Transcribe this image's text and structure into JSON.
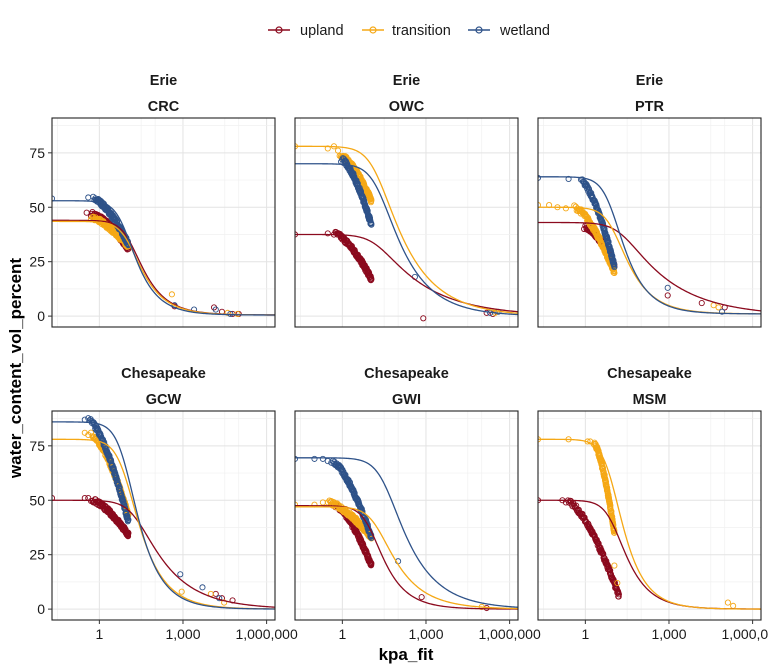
{
  "chart_data": {
    "type": "scatter",
    "xlabel": "kpa_fit",
    "ylabel": "water_content_vol_percent",
    "x_scale": "log10",
    "xlim": [
      0.02,
      2000000
    ],
    "ylim": [
      -5,
      91
    ],
    "x_ticks": [
      1,
      1000,
      1000000
    ],
    "x_tick_labels": [
      "1",
      "1,000",
      "1,000,000"
    ],
    "y_ticks": [
      0,
      25,
      50,
      75
    ],
    "y_tick_labels": [
      "0",
      "25",
      "50",
      "75"
    ],
    "grid": true,
    "legend": {
      "position": "top",
      "entries": [
        "upland",
        "transition",
        "wetland"
      ]
    },
    "series_colors": {
      "upland": "#8B0A1E",
      "transition": "#F5A816",
      "wetland": "#2E5289"
    },
    "panels": [
      {
        "region": "Erie",
        "site": "CRC",
        "curves": {
          "upland": {
            "theta_r": 0.5,
            "theta_s": 44,
            "alpha": 0.08,
            "n": 1.6
          },
          "transition": {
            "theta_r": 0.5,
            "theta_s": 43.5,
            "alpha": 0.09,
            "n": 1.6
          },
          "wetland": {
            "theta_r": 0.5,
            "theta_s": 53,
            "alpha": 0.13,
            "n": 1.65
          }
        },
        "points": {
          "upland": {
            "dense": [
              [
                0.5,
                47
              ],
              [
                11,
                31
              ]
            ],
            "sparse": [
              [
                0.35,
                47.5
              ],
              [
                0.55,
                47
              ],
              [
                500,
                4.5
              ],
              [
                13000,
                4
              ],
              [
                25000,
                2
              ],
              [
                60000,
                1
              ],
              [
                100000,
                1
              ]
            ]
          },
          "transition": {
            "dense": [
              [
                0.5,
                45
              ],
              [
                11,
                32
              ]
            ],
            "sparse": [
              [
                400,
                10
              ],
              [
                40000,
                1.5
              ],
              [
                90000,
                1
              ]
            ]
          },
          "wetland": {
            "dense": [
              [
                0.6,
                54
              ],
              [
                11,
                33
              ]
            ],
            "sparse": [
              [
                0.02,
                54
              ],
              [
                0.4,
                54.5
              ],
              [
                500,
                5
              ],
              [
                2500,
                3
              ],
              [
                15000,
                3
              ],
              [
                50000,
                1
              ]
            ]
          }
        }
      },
      {
        "region": "Erie",
        "site": "OWC",
        "curves": {
          "upland": {
            "theta_r": 0,
            "theta_s": 37.5,
            "alpha": 0.06,
            "n": 1.25
          },
          "transition": {
            "theta_r": 0,
            "theta_s": 78,
            "alpha": 0.06,
            "n": 1.35
          },
          "wetland": {
            "theta_r": 0,
            "theta_s": 70,
            "alpha": 0.05,
            "n": 1.4
          }
        },
        "points": {
          "upland": {
            "dense": [
              [
                0.5,
                38
              ],
              [
                11,
                17
              ]
            ],
            "sparse": [
              [
                0.02,
                37.5
              ],
              [
                0.3,
                38
              ],
              [
                800,
                -1
              ],
              [
                150000,
                1.5
              ],
              [
                250000,
                1
              ]
            ]
          },
          "transition": {
            "dense": [
              [
                0.8,
                74
              ],
              [
                11,
                53
              ]
            ],
            "sparse": [
              [
                0.02,
                78
              ],
              [
                0.3,
                77
              ],
              [
                0.5,
                78
              ],
              [
                0.7,
                76
              ],
              [
                300000,
                1.5
              ],
              [
                350000,
                2
              ]
            ]
          },
          "wetland": {
            "dense": [
              [
                0.9,
                72
              ],
              [
                11,
                42
              ]
            ],
            "sparse": [
              [
                400,
                18
              ],
              [
                200000,
                1.5
              ],
              [
                400000,
                2
              ]
            ]
          }
        }
      },
      {
        "region": "Erie",
        "site": "PTR",
        "curves": {
          "upland": {
            "theta_r": 0,
            "theta_s": 43,
            "alpha": 0.05,
            "n": 1.25
          },
          "transition": {
            "theta_r": 1,
            "theta_s": 50,
            "alpha": 0.1,
            "n": 1.55
          },
          "wetland": {
            "theta_r": 1,
            "theta_s": 64,
            "alpha": 0.12,
            "n": 1.6
          }
        },
        "points": {
          "upland": {
            "dense": [
              [
                1.0,
                41
              ],
              [
                11,
                23
              ]
            ],
            "sparse": [
              [
                0.9,
                40
              ],
              [
                1.1,
                40
              ],
              [
                900,
                9.5
              ],
              [
                15000,
                6
              ],
              [
                100000,
                4
              ]
            ]
          },
          "transition": {
            "dense": [
              [
                0.4,
                50
              ],
              [
                11,
                20
              ]
            ],
            "sparse": [
              [
                0.02,
                51
              ],
              [
                0.05,
                51
              ],
              [
                0.1,
                50
              ],
              [
                0.2,
                49.5
              ],
              [
                40000,
                5
              ],
              [
                60000,
                4
              ]
            ]
          },
          "wetland": {
            "dense": [
              [
                0.7,
                62
              ],
              [
                11,
                23
              ]
            ],
            "sparse": [
              [
                0.02,
                63.5
              ],
              [
                0.25,
                63
              ],
              [
                900,
                13
              ],
              [
                80000,
                2
              ]
            ]
          }
        }
      },
      {
        "region": "Chesapeake",
        "site": "GCW",
        "curves": {
          "upland": {
            "theta_r": 0,
            "theta_s": 50,
            "alpha": 0.05,
            "n": 1.35
          },
          "transition": {
            "theta_r": 0,
            "theta_s": 78,
            "alpha": 0.12,
            "n": 1.55
          },
          "wetland": {
            "theta_r": 0,
            "theta_s": 86,
            "alpha": 0.12,
            "n": 1.6
          }
        },
        "points": {
          "upland": {
            "dense": [
              [
                0.5,
                50
              ],
              [
                11,
                34
              ]
            ],
            "sparse": [
              [
                0.02,
                51
              ],
              [
                0.3,
                51
              ],
              [
                0.4,
                51
              ],
              [
                15000,
                7
              ],
              [
                25000,
                5
              ],
              [
                60000,
                4
              ]
            ]
          },
          "transition": {
            "dense": [
              [
                0.5,
                80
              ],
              [
                11,
                43
              ]
            ],
            "sparse": [
              [
                0.3,
                81
              ],
              [
                0.4,
                80
              ],
              [
                900,
                8
              ],
              [
                10000,
                7
              ],
              [
                30000,
                3
              ]
            ]
          },
          "wetland": {
            "dense": [
              [
                0.4,
                87
              ],
              [
                11,
                40
              ]
            ],
            "sparse": [
              [
                0.3,
                87
              ],
              [
                800,
                16
              ],
              [
                5000,
                10
              ],
              [
                20000,
                5
              ]
            ]
          }
        }
      },
      {
        "region": "Chesapeake",
        "site": "GWI",
        "curves": {
          "upland": {
            "theta_r": 0,
            "theta_s": 47.5,
            "alpha": 0.1,
            "n": 1.6
          },
          "transition": {
            "theta_r": 0,
            "theta_s": 47,
            "alpha": 0.06,
            "n": 1.45
          },
          "wetland": {
            "theta_r": 0,
            "theta_s": 69.5,
            "alpha": 0.03,
            "n": 1.4
          }
        },
        "points": {
          "upland": {
            "dense": [
              [
                0.5,
                48
              ],
              [
                11,
                20
              ]
            ],
            "sparse": [
              [
                0.4,
                48
              ],
              [
                700,
                5.5
              ],
              [
                150000,
                0.5
              ]
            ]
          },
          "transition": {
            "dense": [
              [
                0.3,
                49
              ],
              [
                11,
                33
              ]
            ],
            "sparse": [
              [
                0.02,
                48
              ],
              [
                0.1,
                48
              ],
              [
                0.2,
                49
              ],
              [
                100000,
                1
              ]
            ]
          },
          "wetland": {
            "dense": [
              [
                0.4,
                68
              ],
              [
                11,
                33
              ]
            ],
            "sparse": [
              [
                0.02,
                69
              ],
              [
                0.1,
                69
              ],
              [
                0.2,
                69
              ],
              [
                0.3,
                68
              ],
              [
                100,
                22
              ]
            ]
          }
        }
      },
      {
        "region": "Chesapeake",
        "site": "MSM",
        "curves": {
          "upland": {
            "theta_r": 0,
            "theta_s": 50,
            "alpha": 0.1,
            "n": 1.6
          },
          "transition": {
            "theta_r": 0,
            "theta_s": 78,
            "alpha": 0.12,
            "n": 1.65
          }
        },
        "points": {
          "upland": {
            "dense": [
              [
                0.2,
                50
              ],
              [
                16,
                6
              ]
            ],
            "sparse": [
              [
                0.02,
                50
              ],
              [
                0.15,
                50
              ],
              [
                0.3,
                49
              ]
            ]
          },
          "transition": {
            "dense": [
              [
                2,
                76
              ],
              [
                11,
                35
              ]
            ],
            "sparse": [
              [
                0.02,
                78
              ],
              [
                0.25,
                78
              ],
              [
                1.2,
                77
              ],
              [
                1.5,
                77
              ],
              [
                11,
                20
              ],
              [
                14,
                12
              ],
              [
                130000,
                3
              ],
              [
                200000,
                1.5
              ]
            ]
          }
        }
      }
    ]
  }
}
